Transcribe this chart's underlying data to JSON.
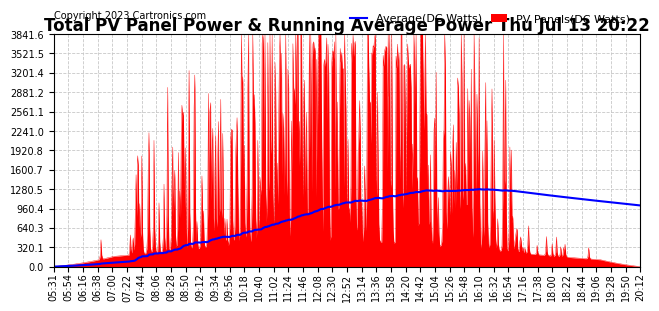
{
  "title": "Total PV Panel Power & Running Average Power Thu Jul 13 20:22",
  "copyright": "Copyright 2023 Cartronics.com",
  "legend_avg": "Average(DC Watts)",
  "legend_pv": "PV Panels(DC Watts)",
  "avg_color": "blue",
  "pv_color": "red",
  "bg_color": "#ffffff",
  "grid_color": "#c8c8c8",
  "yticks": [
    0.0,
    320.1,
    640.3,
    960.4,
    1280.5,
    1600.7,
    1920.8,
    2241.0,
    2561.1,
    2881.2,
    3201.4,
    3521.5,
    3841.6
  ],
  "xtick_labels": [
    "05:31",
    "05:54",
    "06:16",
    "06:38",
    "07:00",
    "07:22",
    "07:44",
    "08:06",
    "08:28",
    "08:50",
    "09:12",
    "09:34",
    "09:56",
    "10:18",
    "10:40",
    "11:02",
    "11:24",
    "11:46",
    "12:08",
    "12:30",
    "12:52",
    "13:14",
    "13:36",
    "13:58",
    "14:20",
    "14:42",
    "15:04",
    "15:26",
    "15:48",
    "16:10",
    "16:32",
    "16:54",
    "17:16",
    "17:38",
    "18:00",
    "18:22",
    "18:44",
    "19:06",
    "19:28",
    "19:50",
    "20:12"
  ],
  "ylim_min": 0.0,
  "ylim_max": 3841.6,
  "title_fontsize": 12,
  "copyright_fontsize": 7,
  "legend_fontsize": 8,
  "tick_fontsize": 7
}
